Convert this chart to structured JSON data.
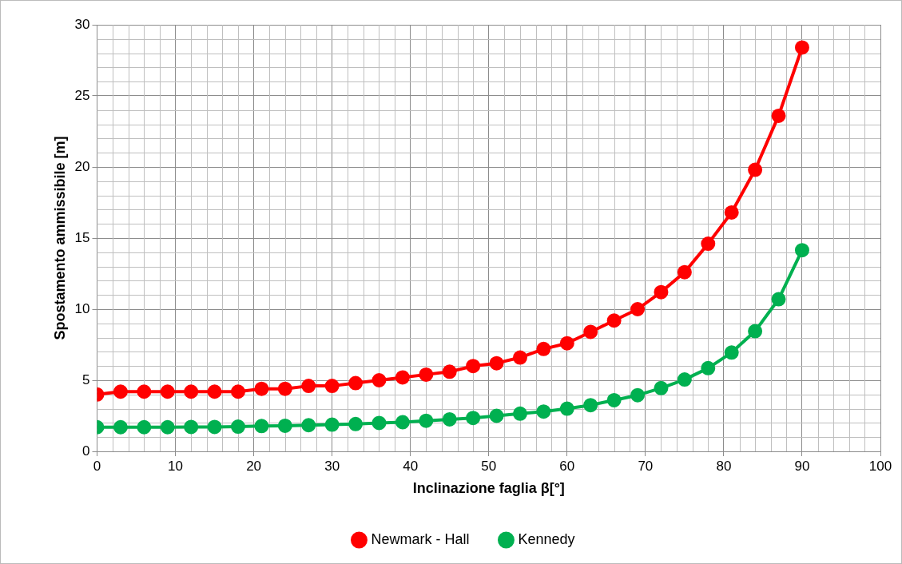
{
  "chart_data": {
    "type": "line",
    "xlabel": "Inclinazione faglia β[°]",
    "ylabel": "Spostamento ammissibile [m]",
    "x": [
      0,
      3,
      6,
      9,
      12,
      15,
      18,
      21,
      24,
      27,
      30,
      33,
      36,
      39,
      42,
      45,
      48,
      51,
      54,
      57,
      60,
      63,
      66,
      69,
      72,
      75,
      78,
      81,
      84,
      87,
      90
    ],
    "series": [
      {
        "name": "Newmark - Hall",
        "color": "#ff0000",
        "values": [
          4.0,
          4.2,
          4.2,
          4.2,
          4.2,
          4.2,
          4.2,
          4.4,
          4.4,
          4.6,
          4.6,
          4.8,
          5.0,
          5.2,
          5.4,
          5.6,
          6.0,
          6.2,
          6.6,
          7.2,
          7.6,
          8.4,
          9.2,
          10.0,
          11.2,
          12.6,
          14.6,
          16.8,
          19.8,
          23.6,
          28.4
        ]
      },
      {
        "name": "Kennedy",
        "color": "#00b050",
        "values": [
          1.7,
          1.7,
          1.7,
          1.7,
          1.72,
          1.72,
          1.74,
          1.78,
          1.8,
          1.84,
          1.88,
          1.92,
          2.0,
          2.05,
          2.15,
          2.25,
          2.35,
          2.5,
          2.65,
          2.8,
          3.0,
          3.25,
          3.6,
          3.95,
          4.45,
          5.05,
          5.85,
          6.95,
          8.45,
          10.7,
          14.15
        ]
      }
    ],
    "xlim": [
      0,
      100
    ],
    "xticks": [
      0,
      10,
      20,
      30,
      40,
      50,
      60,
      70,
      80,
      90,
      100
    ],
    "ylim": [
      0,
      30
    ],
    "yticks": [
      0,
      5,
      10,
      15,
      20,
      25,
      30
    ],
    "grid": true,
    "legend": "bottom",
    "marker": "circle",
    "line_style": "solid"
  }
}
